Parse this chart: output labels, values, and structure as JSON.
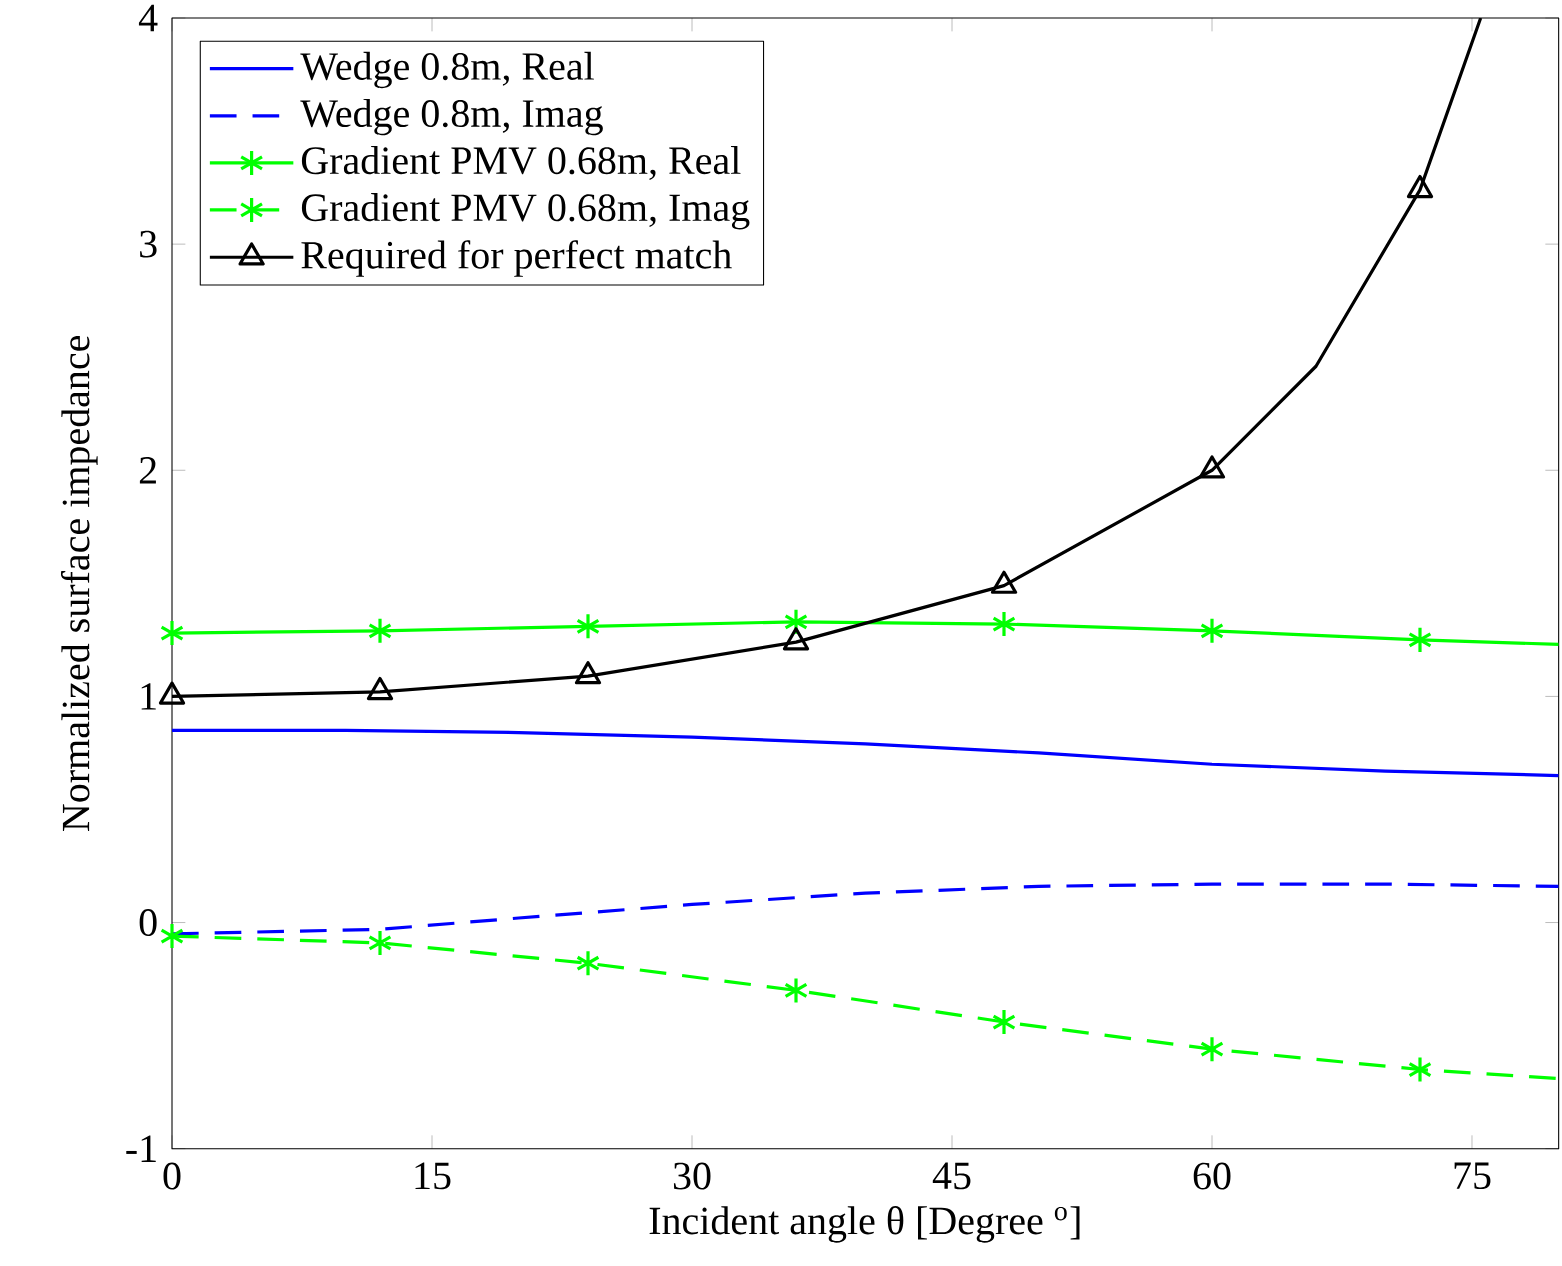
{
  "chart_data": {
    "type": "line",
    "xlabel": "Incident angle θ [Degree $^{o}$]",
    "ylabel": "Normalized surface impedance",
    "xlim": [
      0,
      80
    ],
    "ylim": [
      -1,
      4
    ],
    "xticks": [
      0,
      15,
      30,
      45,
      60,
      75
    ],
    "yticks": [
      -1,
      0,
      1,
      2,
      3,
      4
    ],
    "grid": false,
    "legend": "top left",
    "series": [
      {
        "name": "Wedge 0.8m, Real",
        "color": "#0000ff",
        "line_style": "solid",
        "marker": "none",
        "x": [
          0,
          10,
          20,
          30,
          40,
          50,
          60,
          70,
          80
        ],
        "values": [
          0.85,
          0.85,
          0.84,
          0.82,
          0.79,
          0.75,
          0.7,
          0.67,
          0.65
        ]
      },
      {
        "name": "Wedge 0.8m, Imag",
        "color": "#0000ff",
        "line_style": "dashed",
        "marker": "none",
        "x": [
          0,
          12,
          20,
          30,
          40,
          50,
          60,
          70,
          80
        ],
        "values": [
          -0.05,
          -0.03,
          0.02,
          0.08,
          0.13,
          0.16,
          0.17,
          0.17,
          0.16
        ]
      },
      {
        "name": "Gradient PMV 0.68m, Real",
        "color": "#00ff00",
        "line_style": "solid",
        "marker": "cross",
        "x": [
          0,
          12,
          24,
          36,
          48,
          60,
          72,
          80
        ],
        "values": [
          1.28,
          1.29,
          1.31,
          1.33,
          1.32,
          1.29,
          1.25,
          1.23
        ]
      },
      {
        "name": "Gradient PMV 0.68m, Imag",
        "color": "#00ff00",
        "line_style": "dashed",
        "marker": "cross",
        "x": [
          0,
          12,
          24,
          36,
          48,
          60,
          72,
          80
        ],
        "values": [
          -0.06,
          -0.09,
          -0.18,
          -0.3,
          -0.44,
          -0.56,
          -0.65,
          -0.69
        ]
      },
      {
        "name": "Required for perfect match",
        "color": "#000000",
        "line_style": "solid",
        "marker": "triangle",
        "x": [
          0,
          12,
          24,
          36,
          48,
          60,
          66,
          72,
          75.5
        ],
        "values": [
          1,
          1.02,
          1.09,
          1.24,
          1.49,
          2.0,
          2.46,
          3.24,
          4.0
        ]
      }
    ]
  }
}
